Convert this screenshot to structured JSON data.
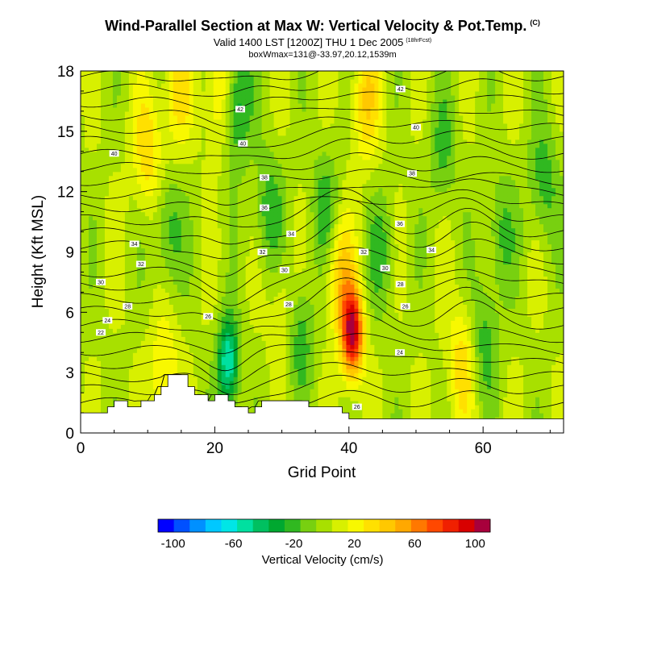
{
  "header": {
    "title": "Wind-Parallel Section at Max W: Vertical Velocity & Pot.Temp.",
    "title_tag": "(C)",
    "subtitle": "Valid 1400 LST [1200Z] THU 1 Dec 2005",
    "forecast_tag": "(18hrFcst)",
    "info_line": "boxWmax=131@-33.97,20.12,1539m"
  },
  "chart_data": {
    "type": "heatmap",
    "xlabel": "Grid Point",
    "ylabel": "Height (Kft MSL)",
    "xlim": [
      0,
      72
    ],
    "ylim": [
      0,
      18
    ],
    "x_ticks": [
      0,
      20,
      40,
      60
    ],
    "y_ticks": [
      0,
      3,
      6,
      9,
      12,
      15,
      18
    ],
    "colorbar": {
      "title": "Vertical Velocity (cm/s)",
      "tick_labels": [
        "-100",
        "-60",
        "-20",
        "20",
        "60",
        "100"
      ],
      "tick_values": [
        -100,
        -60,
        -20,
        20,
        60,
        100
      ],
      "colors": [
        "#0000ff",
        "#0050ff",
        "#0090ff",
        "#00c8ff",
        "#00e6e6",
        "#00e0a0",
        "#00c060",
        "#00a830",
        "#30b820",
        "#78d010",
        "#a8e000",
        "#d8f000",
        "#f8f800",
        "#ffe000",
        "#ffc800",
        "#ffa800",
        "#ff7800",
        "#ff4800",
        "#f02000",
        "#d80000",
        "#a8003c"
      ]
    },
    "velocity_features": [
      {
        "x": 40.5,
        "y": 5.0,
        "w": 95,
        "note": "updraft max"
      },
      {
        "x": 38.5,
        "y": 8.0,
        "w": 35
      },
      {
        "x": 12.5,
        "y": 3.0,
        "w": 25
      },
      {
        "x": 10.0,
        "y": 14.0,
        "w": 30
      },
      {
        "x": 14.5,
        "y": 17.0,
        "w": 25
      },
      {
        "x": 21.0,
        "y": 17.0,
        "w": 35
      },
      {
        "x": 42.5,
        "y": 16.5,
        "w": 30
      },
      {
        "x": 57.0,
        "y": 3.5,
        "w": 30
      },
      {
        "x": 30.5,
        "y": 6.0,
        "w": 20
      },
      {
        "x": 22.0,
        "y": 3.5,
        "w": -60
      },
      {
        "x": 23.0,
        "y": 16.5,
        "w": -45
      },
      {
        "x": 36.5,
        "y": 11.0,
        "w": -25
      },
      {
        "x": 28.0,
        "y": 11.0,
        "w": -25
      },
      {
        "x": 32.5,
        "y": 5.0,
        "w": -30
      },
      {
        "x": 13.0,
        "y": 10.0,
        "w": -25
      },
      {
        "x": 60.0,
        "y": 4.5,
        "w": -25
      },
      {
        "x": 62.5,
        "y": 10.0,
        "w": -20
      },
      {
        "x": 54.0,
        "y": 14.0,
        "w": -20
      },
      {
        "x": 69.0,
        "y": 12.5,
        "w": -25
      },
      {
        "x": 45.0,
        "y": 9.0,
        "w": -20
      }
    ],
    "theta_contour_labels": [
      {
        "x": 23.8,
        "y": 16.1,
        "text": "42"
      },
      {
        "x": 47.7,
        "y": 17.1,
        "text": "42"
      },
      {
        "x": 5.0,
        "y": 13.9,
        "text": "40"
      },
      {
        "x": 24.2,
        "y": 14.4,
        "text": "40"
      },
      {
        "x": 50.0,
        "y": 15.2,
        "text": "40"
      },
      {
        "x": 27.4,
        "y": 12.7,
        "text": "38"
      },
      {
        "x": 49.4,
        "y": 12.9,
        "text": "38"
      },
      {
        "x": 27.4,
        "y": 11.2,
        "text": "36"
      },
      {
        "x": 47.6,
        "y": 10.4,
        "text": "36"
      },
      {
        "x": 8.0,
        "y": 9.4,
        "text": "34"
      },
      {
        "x": 31.4,
        "y": 9.9,
        "text": "34"
      },
      {
        "x": 52.3,
        "y": 9.1,
        "text": "34"
      },
      {
        "x": 9.0,
        "y": 8.4,
        "text": "32"
      },
      {
        "x": 27.1,
        "y": 9.0,
        "text": "32"
      },
      {
        "x": 42.2,
        "y": 9.0,
        "text": "32"
      },
      {
        "x": 30.4,
        "y": 8.1,
        "text": "30"
      },
      {
        "x": 45.4,
        "y": 8.2,
        "text": "30"
      },
      {
        "x": 3.0,
        "y": 7.5,
        "text": "30"
      },
      {
        "x": 7.0,
        "y": 6.3,
        "text": "28"
      },
      {
        "x": 31.0,
        "y": 6.4,
        "text": "28"
      },
      {
        "x": 47.7,
        "y": 7.4,
        "text": "28"
      },
      {
        "x": 48.4,
        "y": 6.3,
        "text": "26"
      },
      {
        "x": 4.0,
        "y": 5.6,
        "text": "24"
      },
      {
        "x": 19.0,
        "y": 5.8,
        "text": "26"
      },
      {
        "x": 3.0,
        "y": 5.0,
        "text": "22"
      },
      {
        "x": 47.6,
        "y": 4.0,
        "text": "24"
      },
      {
        "x": 41.2,
        "y": 1.3,
        "text": "26"
      }
    ],
    "terrain_heights_kft": [
      1.0,
      1.0,
      1.0,
      1.0,
      1.3,
      1.6,
      1.6,
      1.3,
      1.3,
      1.6,
      1.6,
      1.9,
      2.3,
      2.9,
      2.9,
      2.9,
      2.3,
      1.9,
      1.9,
      1.6,
      1.9,
      1.9,
      1.6,
      1.3,
      1.3,
      1.0,
      1.3,
      1.6,
      1.6,
      1.6,
      1.6,
      1.6,
      1.6,
      1.6,
      1.3,
      1.3,
      1.3,
      1.3,
      1.3,
      1.0,
      0.7,
      0.7,
      0.7,
      0.7,
      0.7,
      0.7,
      0.7,
      0.7,
      0.7,
      0.7,
      0.7,
      0.7,
      0.7,
      0.7,
      0.7,
      0.7,
      0.7,
      0.7,
      0.7,
      0.7,
      0.7,
      0.7,
      0.7,
      0.7,
      0.7,
      0.7,
      0.7,
      0.7,
      0.7,
      0.7,
      0.7,
      0.7,
      0.7
    ]
  }
}
